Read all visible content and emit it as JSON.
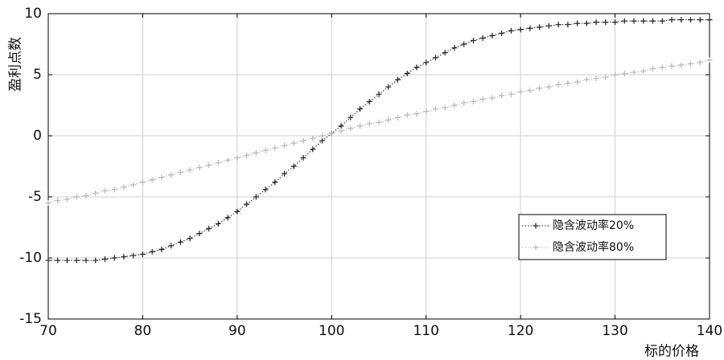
{
  "chart_data": {
    "type": "line",
    "xlabel": "标的价格",
    "ylabel": "盈利点数",
    "x": [
      70,
      71,
      72,
      73,
      74,
      75,
      76,
      77,
      78,
      79,
      80,
      81,
      82,
      83,
      84,
      85,
      86,
      87,
      88,
      89,
      90,
      91,
      92,
      93,
      94,
      95,
      96,
      97,
      98,
      99,
      100,
      101,
      102,
      103,
      104,
      105,
      106,
      107,
      108,
      109,
      110,
      111,
      112,
      113,
      114,
      115,
      116,
      117,
      118,
      119,
      120,
      121,
      122,
      123,
      124,
      125,
      126,
      127,
      128,
      129,
      130,
      131,
      132,
      133,
      134,
      135,
      136,
      137,
      138,
      139,
      140
    ],
    "series": [
      {
        "name": "隐含波动率20%",
        "color": "#222222",
        "values": [
          -10.2,
          -10.2,
          -10.2,
          -10.2,
          -10.2,
          -10.2,
          -10.1,
          -10.0,
          -9.9,
          -9.8,
          -9.7,
          -9.5,
          -9.3,
          -9.0,
          -8.7,
          -8.4,
          -8.0,
          -7.6,
          -7.2,
          -6.7,
          -6.2,
          -5.6,
          -5.0,
          -4.4,
          -3.8,
          -3.1,
          -2.5,
          -1.8,
          -1.1,
          -0.4,
          0.2,
          0.8,
          1.5,
          2.2,
          2.8,
          3.4,
          4.0,
          4.6,
          5.1,
          5.6,
          6.0,
          6.4,
          6.8,
          7.2,
          7.5,
          7.8,
          8.0,
          8.2,
          8.4,
          8.6,
          8.7,
          8.8,
          8.9,
          9.0,
          9.1,
          9.1,
          9.2,
          9.2,
          9.3,
          9.3,
          9.3,
          9.4,
          9.4,
          9.4,
          9.4,
          9.4,
          9.5,
          9.5,
          9.5,
          9.5,
          9.5
        ]
      },
      {
        "name": "隐含波动率80%",
        "color": "#b8b8b8",
        "values": [
          -5.5,
          -5.3,
          -5.2,
          -5.0,
          -4.9,
          -4.7,
          -4.5,
          -4.4,
          -4.2,
          -4.0,
          -3.8,
          -3.6,
          -3.4,
          -3.2,
          -3.0,
          -2.8,
          -2.6,
          -2.4,
          -2.2,
          -2.0,
          -1.8,
          -1.6,
          -1.4,
          -1.2,
          -1.0,
          -0.8,
          -0.6,
          -0.4,
          -0.2,
          0.0,
          0.2,
          0.4,
          0.6,
          0.8,
          1.0,
          1.1,
          1.3,
          1.5,
          1.7,
          1.8,
          2.0,
          2.2,
          2.3,
          2.5,
          2.7,
          2.8,
          3.0,
          3.1,
          3.3,
          3.4,
          3.6,
          3.7,
          3.9,
          4.0,
          4.2,
          4.3,
          4.4,
          4.6,
          4.7,
          4.8,
          5.0,
          5.1,
          5.2,
          5.3,
          5.5,
          5.6,
          5.7,
          5.8,
          5.9,
          6.0,
          6.2
        ]
      }
    ],
    "xlim": [
      70,
      140
    ],
    "xticks": [
      70,
      80,
      90,
      100,
      110,
      120,
      130,
      140
    ],
    "ylim": [
      -15,
      10
    ],
    "yticks": [
      -15,
      -10,
      -5,
      0,
      5,
      10
    ],
    "grid": true,
    "legend_loc": "right"
  }
}
